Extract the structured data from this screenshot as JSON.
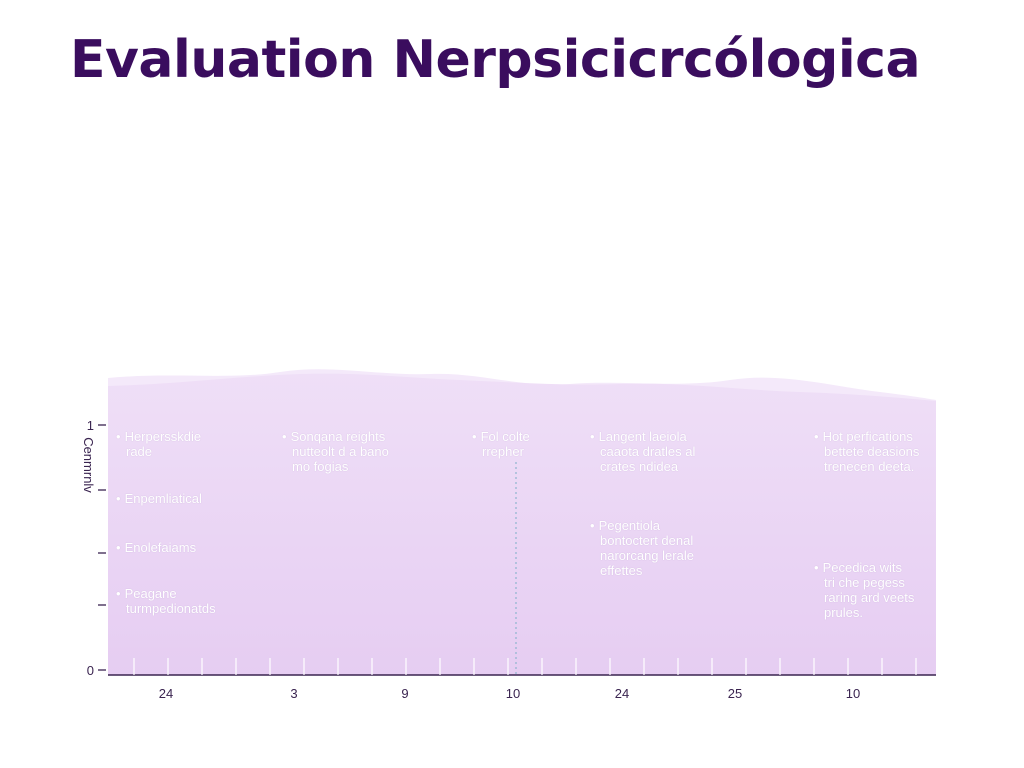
{
  "title": "Evaluation Nerpsicicrcólogica",
  "colors": {
    "title": "#3a0d5e",
    "area_fill": "#e6cdf2",
    "area_top": "#efdff7",
    "wave_light": "#f4e9fa",
    "axis": "#3a2450",
    "divider": "#8fb5cf",
    "annotation_text": "#ffffff"
  },
  "chart_data": {
    "type": "area",
    "title": "Evaluation Nerpsicicrcólogica",
    "ylabel": "Cenmrnlv",
    "xlabel": "",
    "categories": [
      "24",
      "3",
      "9",
      "10",
      "24",
      "25",
      "10"
    ],
    "yticks": [
      "1",
      "0"
    ],
    "ylim": [
      0,
      1
    ],
    "grid": false,
    "annotations": [
      {
        "text": "Herpersskdie rade",
        "lines": [
          "Herpersskdie",
          "rade"
        ],
        "bullet": true
      },
      {
        "text": "Enpemliatical",
        "lines": [
          "Enpemliatical"
        ],
        "bullet": true
      },
      {
        "text": "Enolefaiams",
        "lines": [
          "Enolefaiams"
        ],
        "bullet": true
      },
      {
        "text": "Peagane turmpedionatds",
        "lines": [
          "Peagane",
          "turmpedionatds"
        ],
        "bullet": true
      },
      {
        "text": "Sonqana reights nutteolt d a bano mo fogias",
        "lines": [
          "Sonqana reights",
          "nutteolt d a bano",
          "mo fogias"
        ],
        "bullet": true
      },
      {
        "text": "Fol colte rrepher",
        "lines": [
          "Fol colte",
          "rrepher"
        ],
        "bullet": true
      },
      {
        "text": "Langent laeiola caaota dratles al crates ndidea",
        "lines": [
          "Langent laeiola",
          "caaota dratles al",
          "crates ndidea"
        ],
        "bullet": true
      },
      {
        "text": "Pegentiola bontoctert denal narorcang lerale effettes",
        "lines": [
          "Pegentiola",
          "bontoctert denal",
          "narorcang lerale",
          "effettes"
        ],
        "bullet": true
      },
      {
        "text": "Hot perfications bettete deasions trenecen deeta.",
        "lines": [
          "Hot perfications",
          "bettete deasions",
          "trenecen deeta."
        ],
        "bullet": true
      },
      {
        "text": "Pecedica wits tri che pegess raring ard veets prules.",
        "lines": [
          "Pecedica wits",
          "tri che pegess",
          "raring ard veets",
          "prules."
        ],
        "bullet": true
      }
    ]
  }
}
